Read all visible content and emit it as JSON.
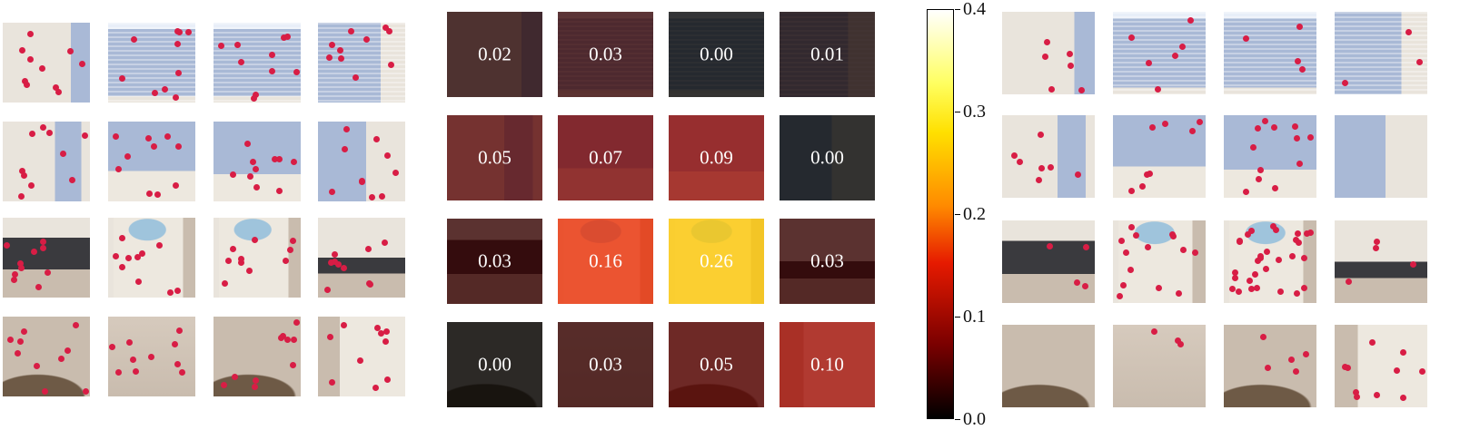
{
  "heatmap": {
    "values": [
      [
        "0.02",
        "0.03",
        "0.00",
        "0.01"
      ],
      [
        "0.05",
        "0.07",
        "0.09",
        "0.00"
      ],
      [
        "0.03",
        "0.16",
        "0.26",
        "0.03"
      ],
      [
        "0.00",
        "0.03",
        "0.05",
        "0.10"
      ]
    ]
  },
  "colorbar": {
    "min": 0.0,
    "max": 0.4,
    "ticks": [
      "0.0",
      "0.1",
      "0.2",
      "0.3",
      "0.4"
    ]
  },
  "colors": {
    "keypoint": "#d81d45",
    "wall": "#e9e4dc",
    "window": "#a9b9d6",
    "chair": "#ede8df",
    "pillow": "#9fc4dc",
    "floor": "#c9bcae",
    "dark_floor": "#3a3a3e"
  },
  "scene_grid": [
    [
      "wall-corner",
      "window",
      "window",
      "window-corner"
    ],
    [
      "wall-window",
      "chair-window",
      "window-chair",
      "window-wall"
    ],
    [
      "desk-floor",
      "chair-pillow",
      "chair-pillow",
      "wall-floor"
    ],
    [
      "floor-table",
      "floor",
      "floor-table",
      "floor-sofa"
    ]
  ]
}
